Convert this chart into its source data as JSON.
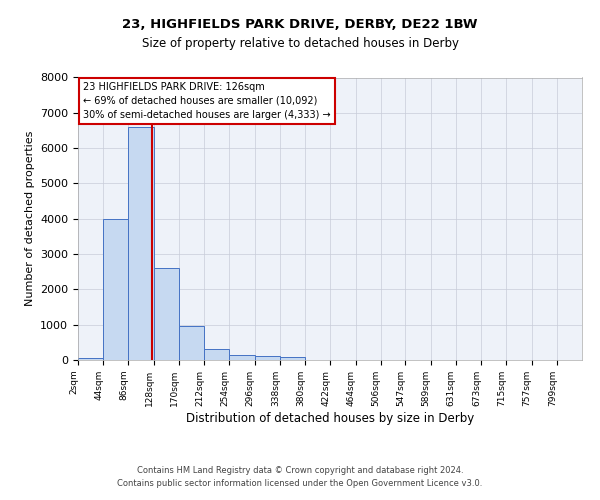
{
  "title1": "23, HIGHFIELDS PARK DRIVE, DERBY, DE22 1BW",
  "title2": "Size of property relative to detached houses in Derby",
  "xlabel": "Distribution of detached houses by size in Derby",
  "ylabel": "Number of detached properties",
  "footer1": "Contains HM Land Registry data © Crown copyright and database right 2024.",
  "footer2": "Contains public sector information licensed under the Open Government Licence v3.0.",
  "annotation_line1": "23 HIGHFIELDS PARK DRIVE: 126sqm",
  "annotation_line2": "← 69% of detached houses are smaller (10,092)",
  "annotation_line3": "30% of semi-detached houses are larger (4,333) →",
  "property_size_sqm": 126,
  "bin_edges": [
    2,
    44,
    86,
    128,
    170,
    212,
    254,
    296,
    338,
    380,
    422,
    464,
    506,
    547,
    589,
    631,
    673,
    715,
    757,
    799,
    841
  ],
  "bar_values": [
    70,
    4000,
    6600,
    2600,
    950,
    310,
    140,
    100,
    90,
    0,
    0,
    0,
    0,
    0,
    0,
    0,
    0,
    0,
    0,
    0
  ],
  "bar_color": "#c6d9f1",
  "bar_edge_color": "#4472c4",
  "vline_color": "#cc0000",
  "vline_x": 126,
  "ylim": [
    0,
    8000
  ],
  "annotation_box_color": "#cc0000",
  "bg_color": "#eef2f9",
  "grid_color": "#c8ccd8"
}
